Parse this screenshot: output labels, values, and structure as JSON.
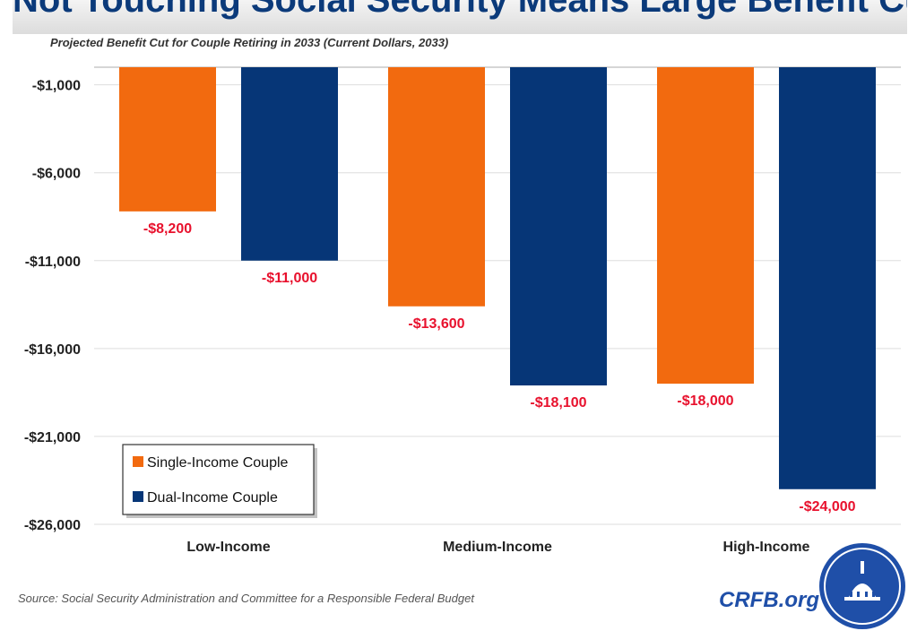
{
  "header": {
    "title": "Not Touching Social Security Means Large Benefit Cuts"
  },
  "chart_data": {
    "type": "bar",
    "title": "Projected Benefit Cut for Couple Retiring in 2033 (Current Dollars, 2033)",
    "categories": [
      "Low-Income",
      "Medium-Income",
      "High-Income"
    ],
    "series": [
      {
        "name": "Single-Income Couple",
        "color": "#f26a0f",
        "values": [
          -8200,
          -13600,
          -18000
        ],
        "labels": [
          "-$8,200",
          "-$13,600",
          "-$18,000"
        ]
      },
      {
        "name": "Dual-Income Couple",
        "color": "#063677",
        "values": [
          -11000,
          -18100,
          -24000
        ],
        "labels": [
          "-$11,000",
          "-$18,100",
          "-$24,000"
        ]
      }
    ],
    "ylim": [
      -26000,
      0
    ],
    "yticks": [
      -1000,
      -6000,
      -11000,
      -16000,
      -21000,
      -26000
    ],
    "ytick_labels": [
      "-$1,000",
      "-$6,000",
      "-$11,000",
      "-$16,000",
      "-$21,000",
      "-$26,000"
    ],
    "data_label_color": "#e8112d",
    "grid": true,
    "legend_position": "bottom-left"
  },
  "footer": {
    "source": "Source: Social Security Administration and Committee for a Responsible Federal Budget",
    "brand": "CRFB.org"
  }
}
